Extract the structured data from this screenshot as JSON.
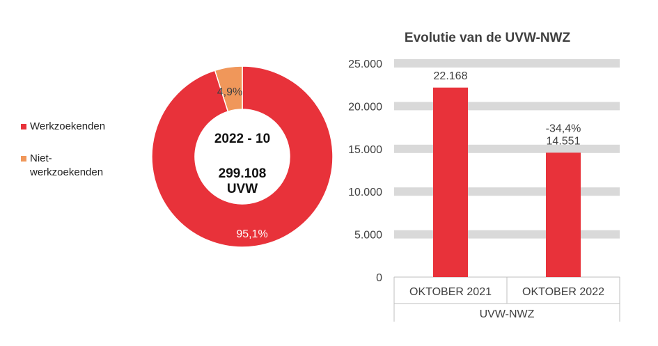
{
  "colors": {
    "werkzoekenden": "#e8323a",
    "niet_werkzoekenden": "#f0975a",
    "gridline": "#d9d9d9",
    "axis": "#bfbfbf"
  },
  "chart_data": [
    {
      "type": "pie",
      "variant": "donut",
      "center_label": {
        "period": "2022 - 10",
        "total": "299.108",
        "unit": "UVW"
      },
      "legend_position": "left",
      "slices": [
        {
          "label": "Werkzoekenden",
          "value": 95.1,
          "display": "95,1%"
        },
        {
          "label": "Niet-werkzoekenden",
          "value": 4.9,
          "display": "4,9%",
          "legend_lines": [
            "Niet-",
            "werkzoekenden"
          ]
        }
      ]
    },
    {
      "type": "bar",
      "title": "Evolutie van de UVW-NWZ",
      "xlabel": "UVW-NWZ",
      "ylabel": "",
      "ylim": [
        0,
        25000
      ],
      "yticks": [
        {
          "value": 0,
          "label": "0"
        },
        {
          "value": 5000,
          "label": "5.000"
        },
        {
          "value": 10000,
          "label": "10.000"
        },
        {
          "value": 15000,
          "label": "15.000"
        },
        {
          "value": 20000,
          "label": "20.000"
        },
        {
          "value": 25000,
          "label": "25.000"
        }
      ],
      "grid": true,
      "categories": [
        "OKTOBER 2021",
        "OKTOBER 2022"
      ],
      "values": [
        22168,
        14551
      ],
      "value_labels": [
        "22.168",
        "14.551"
      ],
      "change_labels": [
        "",
        "-34,4%"
      ]
    }
  ]
}
